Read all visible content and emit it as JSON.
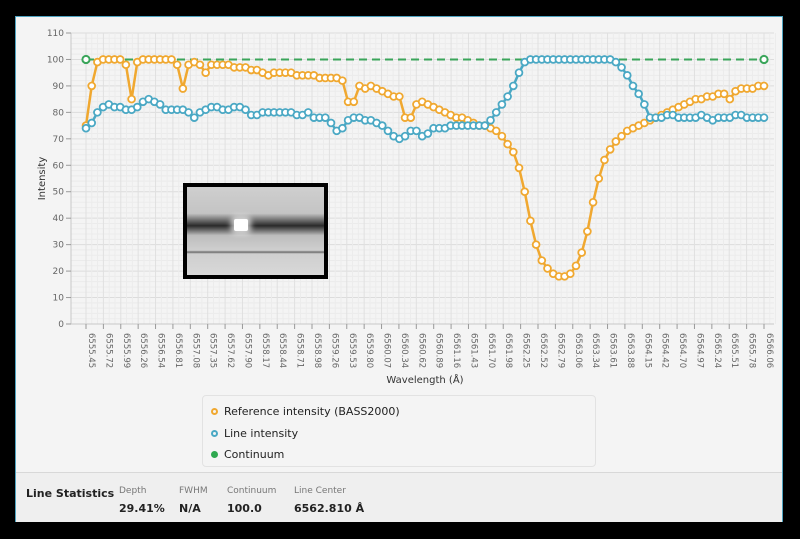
{
  "chart": {
    "y_axis_label": "Intensity",
    "x_axis_label": "Wavelength (Å)",
    "y_ticks": [
      "0",
      "10",
      "20",
      "30",
      "40",
      "50",
      "60",
      "70",
      "80",
      "90",
      "100",
      "110"
    ],
    "x_ticks": [
      "6555.45",
      "6555.72",
      "6555.99",
      "6556.26",
      "6556.54",
      "6556.81",
      "6557.08",
      "6557.35",
      "6557.62",
      "6557.90",
      "6558.17",
      "6558.44",
      "6558.71",
      "6558.98",
      "6559.26",
      "6559.53",
      "6559.80",
      "6560.07",
      "6560.34",
      "6560.62",
      "6560.89",
      "6561.16",
      "6561.43",
      "6561.70",
      "6561.98",
      "6562.25",
      "6562.52",
      "6562.79",
      "6563.06",
      "6563.34",
      "6563.61",
      "6563.88",
      "6564.15",
      "6564.42",
      "6564.70",
      "6564.97",
      "6565.24",
      "6565.51",
      "6565.78",
      "6566.06"
    ]
  },
  "legend": {
    "items": [
      {
        "label": "Reference intensity (BASS2000)",
        "color": "#f0a830",
        "marker": "hollow-circle"
      },
      {
        "label": "Line intensity",
        "color": "#4aa8c4",
        "marker": "hollow-circle"
      },
      {
        "label": "Continuum",
        "color": "#2ea84f",
        "marker": "filled-circle"
      }
    ]
  },
  "stats": {
    "title": "Line Statistics",
    "items": [
      {
        "label": "Depth",
        "value": "29.41%"
      },
      {
        "label": "FWHM",
        "value": "N/A"
      },
      {
        "label": "Continuum",
        "value": "100.0"
      },
      {
        "label": "Line Center",
        "value": "6562.810 Å"
      }
    ]
  },
  "colors": {
    "reference": "#f0a830",
    "line": "#4aa8c4",
    "continuum": "#3aa55a",
    "grid": "#e2e2e2",
    "background": "#f4f4f4"
  },
  "chart_data": {
    "type": "line",
    "title": "",
    "xlabel": "Wavelength (Å)",
    "ylabel": "Intensity",
    "xlim": [
      6555.45,
      6566.06
    ],
    "ylim": [
      0,
      110
    ],
    "grid": true,
    "legend_position": "bottom",
    "x_tick_labels": [
      "6555.45",
      "6555.72",
      "6555.99",
      "6556.26",
      "6556.54",
      "6556.81",
      "6557.08",
      "6557.35",
      "6557.62",
      "6557.90",
      "6558.17",
      "6558.44",
      "6558.71",
      "6558.98",
      "6559.26",
      "6559.53",
      "6559.80",
      "6560.07",
      "6560.34",
      "6560.62",
      "6560.89",
      "6561.16",
      "6561.43",
      "6561.70",
      "6561.98",
      "6562.25",
      "6562.52",
      "6562.79",
      "6563.06",
      "6563.34",
      "6563.61",
      "6563.88",
      "6564.15",
      "6564.42",
      "6564.70",
      "6564.97",
      "6565.24",
      "6565.51",
      "6565.78",
      "6566.06"
    ],
    "n_points": 120,
    "series": [
      {
        "name": "Reference intensity (BASS2000)",
        "color": "#f0a830",
        "values": [
          75,
          90,
          99,
          100,
          100,
          100,
          100,
          98,
          85,
          99,
          100,
          100,
          100,
          100,
          100,
          100,
          98,
          89,
          98,
          99,
          98,
          95,
          98,
          98,
          98,
          98,
          97,
          97,
          97,
          96,
          96,
          95,
          94,
          95,
          95,
          95,
          95,
          94,
          94,
          94,
          94,
          93,
          93,
          93,
          93,
          92,
          84,
          84,
          90,
          89,
          90,
          89,
          88,
          87,
          86,
          86,
          78,
          78,
          83,
          84,
          83,
          82,
          81,
          80,
          79,
          78,
          78,
          77,
          76,
          75,
          75,
          74,
          73,
          71,
          68,
          65,
          59,
          50,
          39,
          30,
          24,
          21,
          19,
          18,
          18,
          19,
          22,
          27,
          35,
          46,
          55,
          62,
          66,
          69,
          71,
          73,
          74,
          75,
          76,
          77,
          78,
          79,
          80,
          81,
          82,
          83,
          84,
          85,
          85,
          86,
          86,
          87,
          87,
          85,
          88,
          89,
          89,
          89,
          90,
          90
        ]
      },
      {
        "name": "Line intensity",
        "color": "#4aa8c4",
        "values": [
          74,
          76,
          80,
          82,
          83,
          82,
          82,
          81,
          81,
          82,
          84,
          85,
          84,
          83,
          81,
          81,
          81,
          81,
          80,
          78,
          80,
          81,
          82,
          82,
          81,
          81,
          82,
          82,
          81,
          79,
          79,
          80,
          80,
          80,
          80,
          80,
          80,
          79,
          79,
          80,
          78,
          78,
          78,
          76,
          73,
          74,
          77,
          78,
          78,
          77,
          77,
          76,
          75,
          73,
          71,
          70,
          71,
          73,
          73,
          71,
          72,
          74,
          74,
          74,
          75,
          75,
          75,
          75,
          75,
          75,
          75,
          77,
          80,
          83,
          86,
          90,
          95,
          99,
          100,
          100,
          100,
          100,
          100,
          100,
          100,
          100,
          100,
          100,
          100,
          100,
          100,
          100,
          100,
          99,
          97,
          94,
          90,
          87,
          83,
          78,
          78,
          78,
          79,
          79,
          78,
          78,
          78,
          78,
          79,
          78,
          77,
          78,
          78,
          78,
          79,
          79,
          78,
          78,
          78,
          78
        ]
      },
      {
        "name": "Continuum",
        "color": "#3aa55a",
        "values": [
          100,
          100
        ],
        "x": [
          6555.45,
          6566.06
        ],
        "style": "dashed"
      }
    ]
  }
}
